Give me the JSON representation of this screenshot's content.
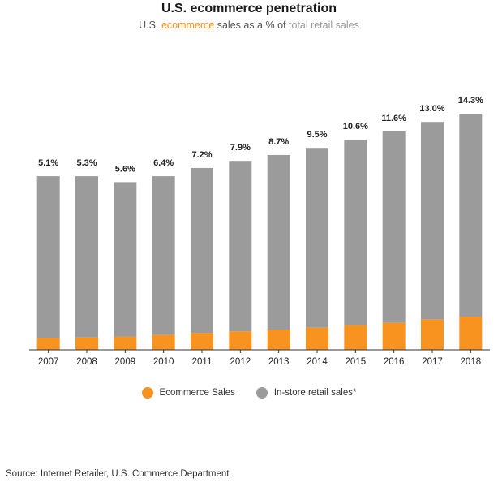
{
  "header": {
    "title": "U.S. ecommerce penetration",
    "subtitle_parts": [
      "U.S. ",
      "ecommerce",
      " sales as a % of ",
      "total retail sales"
    ]
  },
  "colors": {
    "ecommerce": "#f7931e",
    "instore": "#9b9b9b",
    "axis": "#333333"
  },
  "chart_data": {
    "type": "bar",
    "stacked": true,
    "title": "U.S. ecommerce penetration",
    "subtitle": "U.S. ecommerce sales as a % of total retail sales",
    "categories": [
      "2007",
      "2008",
      "2009",
      "2010",
      "2011",
      "2012",
      "2013",
      "2014",
      "2015",
      "2016",
      "2017",
      "2018"
    ],
    "data_labels": [
      "5.1%",
      "5.3%",
      "5.6%",
      "6.4%",
      "7.2%",
      "7.9%",
      "8.7%",
      "9.5%",
      "10.6%",
      "11.6%",
      "13.0%",
      "14.3%"
    ],
    "series": [
      {
        "name": "Ecommerce Sales",
        "values": [
          5.1,
          5.3,
          5.6,
          6.4,
          7.2,
          7.9,
          8.7,
          9.5,
          10.6,
          11.6,
          13.0,
          14.3
        ]
      },
      {
        "name": "In-store retail sales*",
        "values": [
          94.9,
          94.7,
          94.4,
          93.6,
          92.8,
          92.1,
          91.3,
          90.5,
          89.4,
          88.4,
          87.0,
          85.7
        ]
      }
    ],
    "relative_total_height": [
      0.735,
      0.735,
      0.71,
      0.735,
      0.77,
      0.8,
      0.825,
      0.855,
      0.89,
      0.925,
      0.965,
      1.0
    ],
    "grid": false,
    "legend_position": "bottom"
  },
  "legend": [
    {
      "label": "Ecommerce Sales",
      "color": "#f7931e"
    },
    {
      "label": "In-store retail sales*",
      "color": "#9b9b9b"
    }
  ],
  "footer": {
    "source": "Source: Internet Retailer, U.S. Commerce Department"
  }
}
